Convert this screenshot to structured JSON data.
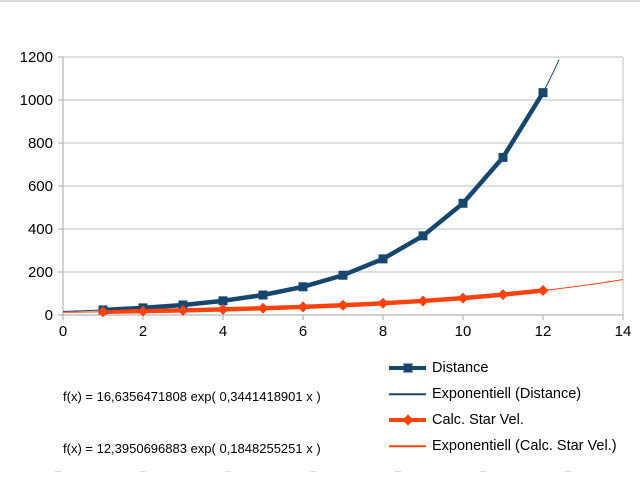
{
  "chart_data": {
    "type": "line",
    "title": "",
    "xlabel": "",
    "ylabel": "",
    "xlim": [
      0,
      14
    ],
    "ylim": [
      0,
      1200
    ],
    "x_ticks": [
      0,
      2,
      4,
      6,
      8,
      10,
      12,
      14
    ],
    "y_ticks": [
      0,
      200,
      400,
      600,
      800,
      1000,
      1200
    ],
    "grid": true,
    "legend_position": "bottom-right",
    "axis_color": "#b3b3b3",
    "grid_color": "#bdbdbd",
    "x": [
      1,
      2,
      3,
      4,
      5,
      6,
      7,
      8,
      9,
      10,
      11,
      12
    ],
    "series": [
      {
        "name": "Distance",
        "color": "#17466F",
        "marker": "square",
        "values": [
          23.5,
          33.1,
          46.7,
          65.9,
          93.0,
          131.2,
          185.0,
          261.0,
          368.3,
          519.6,
          733.0,
          1034.1
        ]
      },
      {
        "name": "Calc. Star Vel.",
        "color": "#FF420E",
        "marker": "diamond",
        "values": [
          14.9,
          17.9,
          21.6,
          26.0,
          31.2,
          37.6,
          45.2,
          54.4,
          65.4,
          78.7,
          94.7,
          113.9
        ]
      }
    ],
    "trendlines": [
      {
        "name": "Exponentiell (Distance)",
        "color": "#17466F",
        "a": 16.6356471808,
        "b": 0.3441418901,
        "x_range": [
          0,
          12.43
        ],
        "equation_label": "f(x) = 16,6356471808 exp( 0,3441418901 x )"
      },
      {
        "name": "Exponentiell (Calc. Star Vel.)",
        "color": "#FF420E",
        "a": 12.3950696883,
        "b": 0.1848255251,
        "x_range": [
          0,
          14
        ],
        "equation_label": "f(x) = 12,3950696883 exp( 0,1848255251 x )"
      }
    ]
  },
  "legend": {
    "items": [
      {
        "label": "Distance",
        "swatch": "thick-line-square"
      },
      {
        "label": "Exponentiell (Distance)",
        "swatch": "thin-line"
      },
      {
        "label": "Calc. Star Vel.",
        "swatch": "thick-line-diamond"
      },
      {
        "label": "Exponentiell (Calc. Star Vel.)",
        "swatch": "thin-line"
      }
    ]
  }
}
